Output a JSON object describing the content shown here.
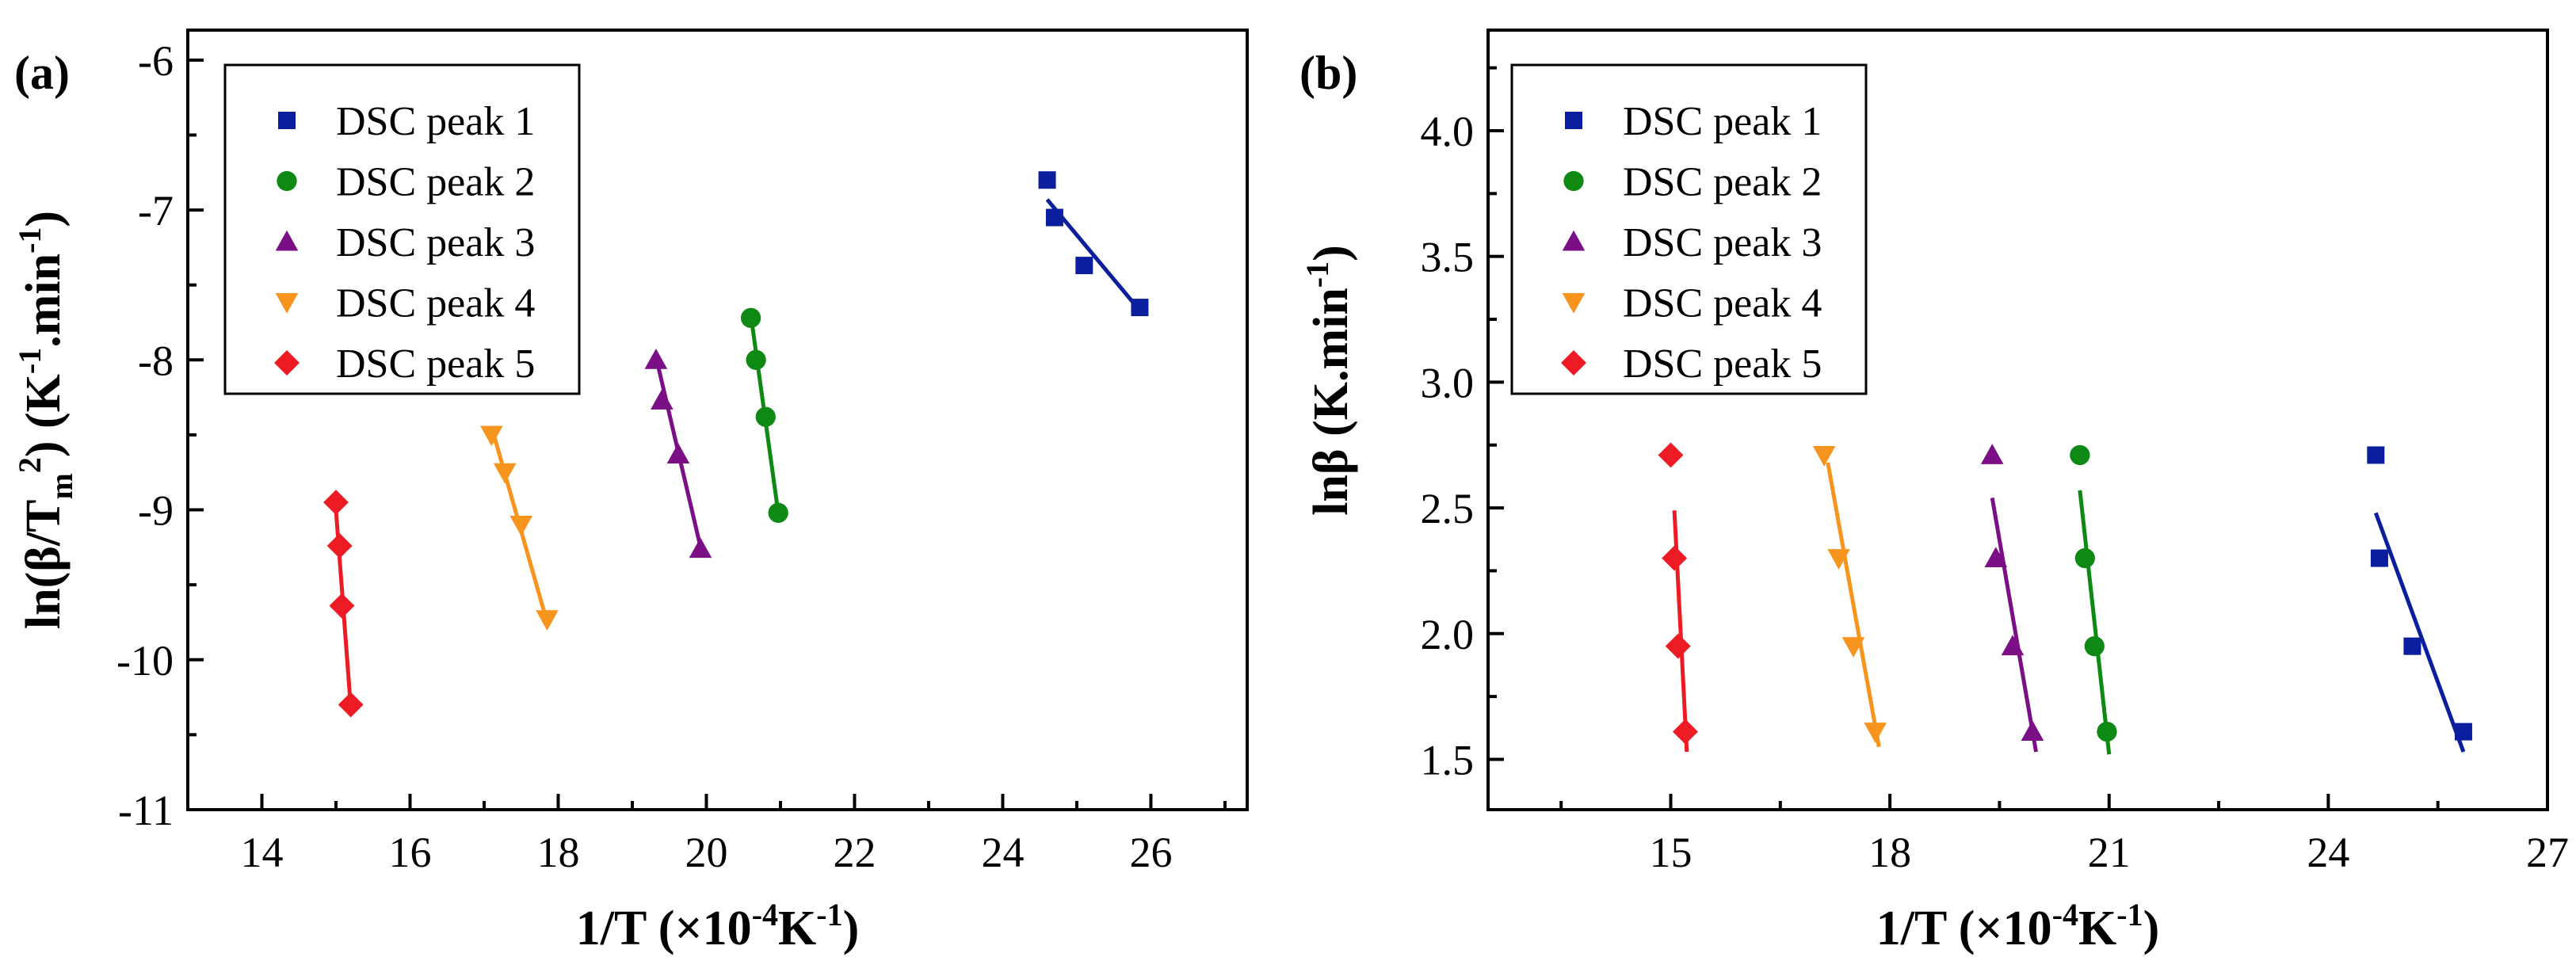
{
  "chart_data": [
    {
      "panel_label": "(a)",
      "type": "scatter",
      "xlabel": {
        "main": "1/T (×10",
        "sup1": "-4",
        "mid": "K",
        "sup2": "-1",
        "end": ")"
      },
      "ylabel": {
        "p1": "ln(β/T",
        "sub": "m",
        "sup": "2",
        "p2": ") (K",
        "sup2": "-1",
        "p3": ".min",
        "sup3": "-1",
        "p4": ")"
      },
      "xlim": [
        13,
        27.3
      ],
      "ylim": [
        -11,
        -5.8
      ],
      "xticks": [
        14,
        16,
        18,
        20,
        22,
        24,
        26
      ],
      "xtick_labels": [
        "14",
        "16",
        "18",
        "20",
        "22",
        "24",
        "26"
      ],
      "yticks": [
        -11,
        -10,
        -9,
        -8,
        -7,
        -6
      ],
      "ytick_labels": [
        "-11",
        "-10",
        "-9",
        "-8",
        "-7",
        "-6"
      ],
      "legend_position": "top-left",
      "series": [
        {
          "name": "DSC peak 1",
          "color": "#0a1e9e",
          "marker": "square",
          "x": [
            24.6,
            24.7,
            25.1,
            25.85
          ],
          "y": [
            -6.8,
            -7.05,
            -7.37,
            -7.65
          ],
          "fit": {
            "x": [
              24.6,
              25.85
            ],
            "y": [
              -6.93,
              -7.67
            ]
          }
        },
        {
          "name": "DSC peak 2",
          "color": "#0e8a14",
          "marker": "circle",
          "x": [
            20.6,
            20.67,
            20.8,
            20.97
          ],
          "y": [
            -7.72,
            -8.0,
            -8.38,
            -9.02
          ],
          "fit": {
            "x": [
              20.6,
              20.97
            ],
            "y": [
              -7.7,
              -9.02
            ]
          }
        },
        {
          "name": "DSC peak 3",
          "color": "#7a0f86",
          "marker": "triangle-up",
          "x": [
            19.32,
            19.4,
            19.62,
            19.92
          ],
          "y": [
            -8.0,
            -8.27,
            -8.63,
            -9.26
          ],
          "fit": {
            "x": [
              19.32,
              19.95
            ],
            "y": [
              -7.98,
              -9.31
            ]
          }
        },
        {
          "name": "DSC peak 4",
          "color": "#f7941d",
          "marker": "triangle-down",
          "x": [
            17.1,
            17.28,
            17.5,
            17.85
          ],
          "y": [
            -8.5,
            -8.75,
            -9.1,
            -9.73
          ],
          "fit": {
            "x": [
              17.12,
              17.85
            ],
            "y": [
              -8.48,
              -9.75
            ]
          }
        },
        {
          "name": "DSC peak 5",
          "color": "#ed1c24",
          "marker": "diamond",
          "x": [
            15.0,
            15.05,
            15.08,
            15.2
          ],
          "y": [
            -8.95,
            -9.24,
            -9.64,
            -10.3
          ],
          "fit": {
            "x": [
              15.0,
              15.2
            ],
            "y": [
              -9.0,
              -10.32
            ]
          }
        }
      ]
    },
    {
      "panel_label": "(b)",
      "type": "scatter",
      "xlabel": {
        "main": "1/T (×10",
        "sup1": "-4",
        "mid": "K",
        "sup2": "-1",
        "end": ")"
      },
      "ylabel": {
        "p1": "lnβ (K.min",
        "sup": "-1",
        "p2": ")"
      },
      "xlim": [
        12.5,
        27
      ],
      "ylim": [
        1.3,
        4.4
      ],
      "xticks": [
        15,
        18,
        21,
        24,
        27
      ],
      "xtick_labels": [
        "15",
        "18",
        "21",
        "24",
        "27"
      ],
      "yticks": [
        1.5,
        2.0,
        2.5,
        3.0,
        3.5,
        4.0
      ],
      "ytick_labels": [
        "1.5",
        "2.0",
        "2.5",
        "3.0",
        "3.5",
        "4.0"
      ],
      "legend_position": "top-left",
      "series": [
        {
          "name": "DSC peak 1",
          "color": "#0a1e9e",
          "marker": "square",
          "x": [
            24.65,
            24.7,
            25.15,
            25.85
          ],
          "y": [
            2.71,
            2.3,
            1.95,
            1.61
          ],
          "fit": {
            "x": [
              24.65,
              25.85
            ],
            "y": [
              2.48,
              1.53
            ]
          }
        },
        {
          "name": "DSC peak 2",
          "color": "#0e8a14",
          "marker": "circle",
          "x": [
            20.6,
            20.67,
            20.8,
            20.97
          ],
          "y": [
            2.71,
            2.3,
            1.95,
            1.61
          ],
          "fit": {
            "x": [
              20.6,
              21.0
            ],
            "y": [
              2.57,
              1.52
            ]
          }
        },
        {
          "name": "DSC peak 3",
          "color": "#7a0f86",
          "marker": "triangle-up",
          "x": [
            19.4,
            19.45,
            19.68,
            19.95
          ],
          "y": [
            2.71,
            2.3,
            1.95,
            1.61
          ],
          "fit": {
            "x": [
              19.4,
              20.0
            ],
            "y": [
              2.54,
              1.53
            ]
          }
        },
        {
          "name": "DSC peak 4",
          "color": "#f7941d",
          "marker": "triangle-down",
          "x": [
            17.1,
            17.3,
            17.5,
            17.8
          ],
          "y": [
            2.71,
            2.3,
            1.95,
            1.61
          ],
          "fit": {
            "x": [
              17.15,
              17.85
            ],
            "y": [
              2.68,
              1.55
            ]
          }
        },
        {
          "name": "DSC peak 5",
          "color": "#ed1c24",
          "marker": "diamond",
          "x": [
            15.0,
            15.05,
            15.1,
            15.2
          ],
          "y": [
            2.71,
            2.3,
            1.95,
            1.61
          ],
          "fit": {
            "x": [
              15.05,
              15.22
            ],
            "y": [
              2.49,
              1.53
            ]
          }
        }
      ]
    }
  ]
}
